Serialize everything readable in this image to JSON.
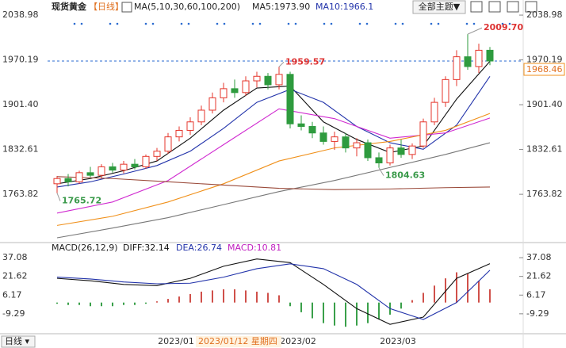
{
  "chart_data": [
    {
      "type": "candlestick",
      "title": "现货黄金",
      "period": "【日线】",
      "ma_label": "MA(5,10,30,60,100,200)",
      "header_values": [
        "MA5:1973.90",
        "MA10:1966.1"
      ],
      "theme_button": "全部主题▼",
      "categories": [
        null,
        null,
        null,
        null,
        null,
        null,
        null,
        null,
        null,
        null,
        null,
        "2023/01",
        null,
        null,
        null,
        null,
        null,
        null,
        null,
        null,
        null,
        null,
        "2023/02",
        null,
        null,
        null,
        null,
        null,
        null,
        null,
        null,
        "2023/03",
        null,
        null,
        null,
        null,
        null,
        null,
        null,
        null
      ],
      "crosshair_label": "2023/01/12 星期四",
      "open": [
        1780,
        1788,
        1783,
        1797,
        1793,
        1806,
        1801,
        1810,
        1806,
        1822,
        1830,
        1852,
        1862,
        1875,
        1893,
        1912,
        1926,
        1920,
        1938,
        1945,
        1932,
        1948,
        1872,
        1868,
        1858,
        1845,
        1852,
        1835,
        1843,
        1820,
        1812,
        1835,
        1825,
        1838,
        1875,
        1905,
        1940,
        1975,
        1960,
        1985
      ],
      "high": [
        1792,
        1795,
        1800,
        1806,
        1810,
        1812,
        1815,
        1818,
        1825,
        1835,
        1858,
        1868,
        1882,
        1900,
        1920,
        1935,
        1940,
        1945,
        1952,
        1950,
        1959.57,
        1952,
        1885,
        1875,
        1868,
        1860,
        1858,
        1850,
        1848,
        1828,
        1840,
        1848,
        1842,
        1880,
        1912,
        1945,
        1985,
        2009.7,
        1995,
        1990
      ],
      "low": [
        1765.72,
        1776,
        1780,
        1790,
        1788,
        1797,
        1796,
        1802,
        1803,
        1815,
        1826,
        1845,
        1855,
        1870,
        1888,
        1905,
        1912,
        1915,
        1928,
        1925,
        1925,
        1865,
        1862,
        1850,
        1840,
        1832,
        1828,
        1822,
        1815,
        1804.63,
        1808,
        1820,
        1818,
        1835,
        1870,
        1898,
        1930,
        1955,
        1950,
        1962
      ],
      "close": [
        1788,
        1783,
        1797,
        1793,
        1806,
        1801,
        1810,
        1806,
        1822,
        1830,
        1852,
        1862,
        1875,
        1893,
        1912,
        1926,
        1920,
        1938,
        1945,
        1932,
        1948,
        1872,
        1868,
        1858,
        1845,
        1852,
        1835,
        1843,
        1820,
        1812,
        1835,
        1825,
        1838,
        1875,
        1905,
        1940,
        1975,
        1960,
        1985,
        1968.46
      ],
      "up_color": "#e5352b",
      "down_color": "#2e9b3e",
      "annotations": [
        {
          "label": "2009.70",
          "color": "#d33"
        },
        {
          "label": "1959.57",
          "color": "#d33"
        },
        {
          "label": "1804.63",
          "color": "#3a9a4a"
        },
        {
          "label": "1765.72",
          "color": "#3a9a4a"
        }
      ],
      "current_price": {
        "value": 1968.46,
        "label": "1968.46"
      },
      "series": [
        {
          "name": "MA5",
          "color": "#111111",
          "x": [
            0,
            3,
            6,
            9,
            12,
            15,
            18,
            21,
            24,
            27,
            30,
            33,
            36,
            39
          ],
          "values": [
            1780,
            1788,
            1800,
            1815,
            1850,
            1893,
            1927,
            1930,
            1875,
            1848,
            1828,
            1838,
            1910,
            1968
          ]
        },
        {
          "name": "MA10",
          "color": "#2233aa",
          "x": [
            0,
            3,
            6,
            9,
            12,
            15,
            18,
            21,
            24,
            27,
            30,
            33,
            36,
            39
          ],
          "values": [
            1775,
            1783,
            1795,
            1808,
            1830,
            1865,
            1905,
            1925,
            1905,
            1868,
            1843,
            1833,
            1870,
            1945
          ]
        },
        {
          "name": "MA30",
          "color": "#d02ad0",
          "x": [
            0,
            5,
            10,
            15,
            20,
            25,
            30,
            35,
            39
          ],
          "values": [
            1735,
            1752,
            1785,
            1840,
            1895,
            1880,
            1850,
            1858,
            1881
          ]
        },
        {
          "name": "MA60",
          "color": "#f0901a",
          "x": [
            0,
            5,
            10,
            15,
            20,
            25,
            30,
            35,
            39
          ],
          "values": [
            1716,
            1730,
            1752,
            1780,
            1815,
            1835,
            1845,
            1862,
            1888
          ]
        },
        {
          "name": "MA100",
          "color": "#777777",
          "x": [
            0,
            5,
            10,
            15,
            20,
            25,
            30,
            35,
            39
          ],
          "values": [
            1697,
            1712,
            1728,
            1748,
            1768,
            1785,
            1805,
            1825,
            1843
          ]
        },
        {
          "name": "MA200",
          "color": "#9a4a3a",
          "x": [
            0,
            5,
            10,
            15,
            20,
            25,
            30,
            35,
            39
          ],
          "values": [
            1791,
            1788,
            1783,
            1778,
            1773,
            1771,
            1772,
            1774,
            1775
          ]
        }
      ],
      "ylim": [
        1697,
        2050
      ],
      "yticks": [
        2038.98,
        1970.19,
        {
          "value": 1901.4,
          "label": "1901.40"
        },
        1832.61,
        1763.82
      ]
    },
    {
      "type": "macd",
      "title": "MACD(26,12,9)",
      "header_values": [
        {
          "text": "DIFF:32.14",
          "color": "#111111"
        },
        {
          "text": "DEA:26.74",
          "color": "#2233aa"
        },
        {
          "text": "MACD:10.81",
          "color": "#c020c0"
        }
      ],
      "values": [
        -1,
        -2,
        -2,
        -3,
        -3,
        -3,
        -2,
        -2,
        -1,
        1,
        3,
        5,
        7,
        9,
        10,
        11,
        11,
        10,
        9,
        8,
        6,
        -3,
        -8,
        -13,
        -17,
        -19,
        -20,
        -19,
        -17,
        -14,
        -10,
        -5,
        2,
        8,
        14,
        20,
        25,
        24,
        18,
        11
      ],
      "up_color": "#d0504a",
      "down_color": "#3aa04a",
      "series": [
        {
          "name": "DIFF",
          "color": "#111111",
          "x": [
            0,
            3,
            6,
            9,
            12,
            15,
            18,
            21,
            24,
            27,
            30,
            33,
            36,
            39
          ],
          "values": [
            20,
            18,
            15,
            14,
            20,
            30,
            36,
            33,
            15,
            -5,
            -18,
            -12,
            20,
            32.14
          ]
        },
        {
          "name": "DEA",
          "color": "#2233aa",
          "x": [
            0,
            3,
            6,
            9,
            12,
            15,
            18,
            21,
            24,
            27,
            30,
            33,
            36,
            39
          ],
          "values": [
            21,
            19.5,
            17,
            15.5,
            16,
            21,
            28,
            32,
            28,
            15,
            -5,
            -14,
            0,
            26.74
          ]
        }
      ],
      "ylim": [
        -25.1,
        41.7
      ],
      "yticks": [
        37.08,
        21.62,
        6.17,
        -9.29
      ]
    }
  ],
  "footer": {
    "period_button": "日线 ▾"
  }
}
